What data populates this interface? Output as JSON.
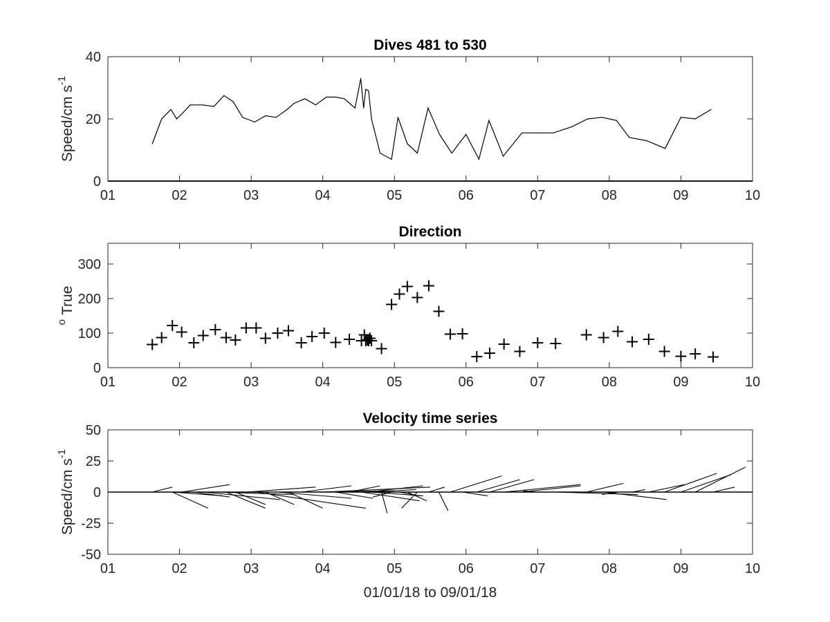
{
  "chart_data": [
    {
      "type": "line",
      "title": "Dives 481 to 530",
      "ylabel": {
        "main": "Speed/cm s",
        "sup": "-1"
      },
      "xlim": [
        1,
        10
      ],
      "ylim": [
        0,
        40
      ],
      "xticks": [
        1,
        2,
        3,
        4,
        5,
        6,
        7,
        8,
        9,
        10
      ],
      "xtick_labels": [
        "01",
        "02",
        "03",
        "04",
        "05",
        "06",
        "07",
        "08",
        "09",
        "10"
      ],
      "yticks": [
        0,
        20,
        40
      ],
      "ytick_labels": [
        "0",
        "20",
        "40"
      ],
      "baseline": 0,
      "series": [
        {
          "x": [
            1.62,
            1.75,
            1.88,
            1.96,
            2.05,
            2.15,
            2.32,
            2.48,
            2.62,
            2.75,
            2.88,
            3.05,
            3.2,
            3.35,
            3.5,
            3.6,
            3.75,
            3.9,
            4.05,
            4.18,
            4.3,
            4.45,
            4.53,
            4.57,
            4.6,
            4.64,
            4.68,
            4.8,
            4.96,
            5.05,
            5.18,
            5.32,
            5.47,
            5.63,
            5.8,
            6.0,
            6.18,
            6.32,
            6.52,
            6.78,
            7.0,
            7.22,
            7.48,
            7.7,
            7.9,
            8.1,
            8.28,
            8.52,
            8.78,
            9.0,
            9.2,
            9.42
          ],
          "y": [
            12,
            20,
            23,
            20,
            22,
            24.5,
            24.5,
            24,
            27.5,
            25.5,
            20.5,
            19,
            21,
            20.5,
            23,
            25,
            26.5,
            24.5,
            27,
            27,
            26.5,
            23.5,
            33,
            23.5,
            29.5,
            29,
            20,
            9,
            7,
            20.5,
            12,
            9,
            23.5,
            15,
            9,
            15,
            7,
            19.5,
            8,
            15.5,
            15.5,
            15.5,
            17.5,
            20,
            20.5,
            19.5,
            14,
            13,
            10.5,
            20.5,
            20,
            23
          ]
        }
      ]
    },
    {
      "type": "scatter",
      "title": "Direction",
      "ylabel": {
        "sup": "o",
        "main": "True"
      },
      "xlim": [
        1,
        10
      ],
      "ylim": [
        0,
        360
      ],
      "xticks": [
        1,
        2,
        3,
        4,
        5,
        6,
        7,
        8,
        9,
        10
      ],
      "xtick_labels": [
        "01",
        "02",
        "03",
        "04",
        "05",
        "06",
        "07",
        "08",
        "09",
        "10"
      ],
      "yticks": [
        0,
        100,
        200,
        300
      ],
      "ytick_labels": [
        "0",
        "100",
        "200",
        "300"
      ],
      "marker": "+",
      "series": [
        {
          "x": [
            1.62,
            1.75,
            1.9,
            2.03,
            2.2,
            2.33,
            2.5,
            2.65,
            2.78,
            2.93,
            3.07,
            3.2,
            3.37,
            3.52,
            3.7,
            3.85,
            4.02,
            4.18,
            4.37,
            4.54,
            4.58,
            4.6,
            4.62,
            4.64,
            4.66,
            4.68,
            4.82,
            4.96,
            5.07,
            5.18,
            5.32,
            5.48,
            5.62,
            5.78,
            5.95,
            6.15,
            6.33,
            6.53,
            6.75,
            7.0,
            7.25,
            7.68,
            7.92,
            8.12,
            8.32,
            8.55,
            8.77,
            9.0,
            9.2,
            9.45
          ],
          "y": [
            67,
            87,
            122,
            103,
            72,
            93,
            110,
            87,
            80,
            115,
            115,
            85,
            100,
            107,
            72,
            90,
            100,
            73,
            82,
            78,
            95,
            78,
            80,
            78,
            85,
            78,
            55,
            183,
            213,
            235,
            203,
            237,
            163,
            97,
            98,
            32,
            42,
            68,
            47,
            72,
            70,
            95,
            87,
            105,
            75,
            82,
            47,
            33,
            40,
            31
          ]
        }
      ]
    },
    {
      "type": "stick",
      "title": "Velocity time series",
      "ylabel": {
        "main": "Speed/cm s",
        "sup": "-1"
      },
      "xlabel": "01/01/18 to 09/01/18",
      "xlim": [
        1,
        10
      ],
      "ylim": [
        -50,
        50
      ],
      "xticks": [
        1,
        2,
        3,
        4,
        5,
        6,
        7,
        8,
        9,
        10
      ],
      "xtick_labels": [
        "01",
        "02",
        "03",
        "04",
        "05",
        "06",
        "07",
        "08",
        "09",
        "10"
      ],
      "yticks": [
        -50,
        -25,
        0,
        25,
        50
      ],
      "ytick_labels": [
        "-50",
        "-25",
        "0",
        "25",
        "50"
      ],
      "baseline": 0,
      "sticks": {
        "x0": [
          1.62,
          1.9,
          1.9,
          2.03,
          2.2,
          2.33,
          2.5,
          2.65,
          2.78,
          2.93,
          3.07,
          3.2,
          3.37,
          3.52,
          3.7,
          3.85,
          4.02,
          4.18,
          4.37,
          4.54,
          4.58,
          4.62,
          4.66,
          4.68,
          4.82,
          4.96,
          5.07,
          5.18,
          5.32,
          5.48,
          5.62,
          5.78,
          5.95,
          6.15,
          6.33,
          6.53,
          6.75,
          7.0,
          7.25,
          7.68,
          7.92,
          8.12,
          8.32,
          8.55,
          8.77,
          9.0,
          9.2,
          9.45
        ],
        "x1": [
          1.9,
          2.4,
          2.6,
          2.7,
          2.7,
          3.4,
          3.6,
          3.2,
          3.2,
          3.9,
          4.6,
          3.6,
          4.4,
          4.0,
          4.4,
          5.0,
          5.5,
          4.7,
          4.8,
          5.35,
          4.0,
          5.4,
          5.4,
          5.3,
          4.9,
          4.7,
          5.35,
          5.45,
          5.1,
          5.7,
          5.75,
          6.5,
          6.3,
          6.75,
          6.95,
          7.6,
          7.6,
          6.8,
          8.4,
          8.2,
          8.8,
          7.9,
          8.5,
          9.05,
          9.5,
          9.7,
          9.9,
          9.75
        ],
        "y1": [
          4,
          -13,
          -3,
          6,
          -4,
          -6,
          -2,
          -13,
          -10,
          4,
          -13,
          -10,
          -5,
          -13,
          5,
          1,
          4,
          -5,
          5,
          -7,
          0,
          5,
          -3,
          2,
          -17,
          -4,
          -3,
          -7,
          -13,
          4,
          -15,
          13,
          -3,
          10,
          10,
          6,
          5,
          1,
          -2,
          7,
          -6,
          -2,
          2,
          6,
          15,
          14,
          20,
          4
        ]
      }
    }
  ]
}
